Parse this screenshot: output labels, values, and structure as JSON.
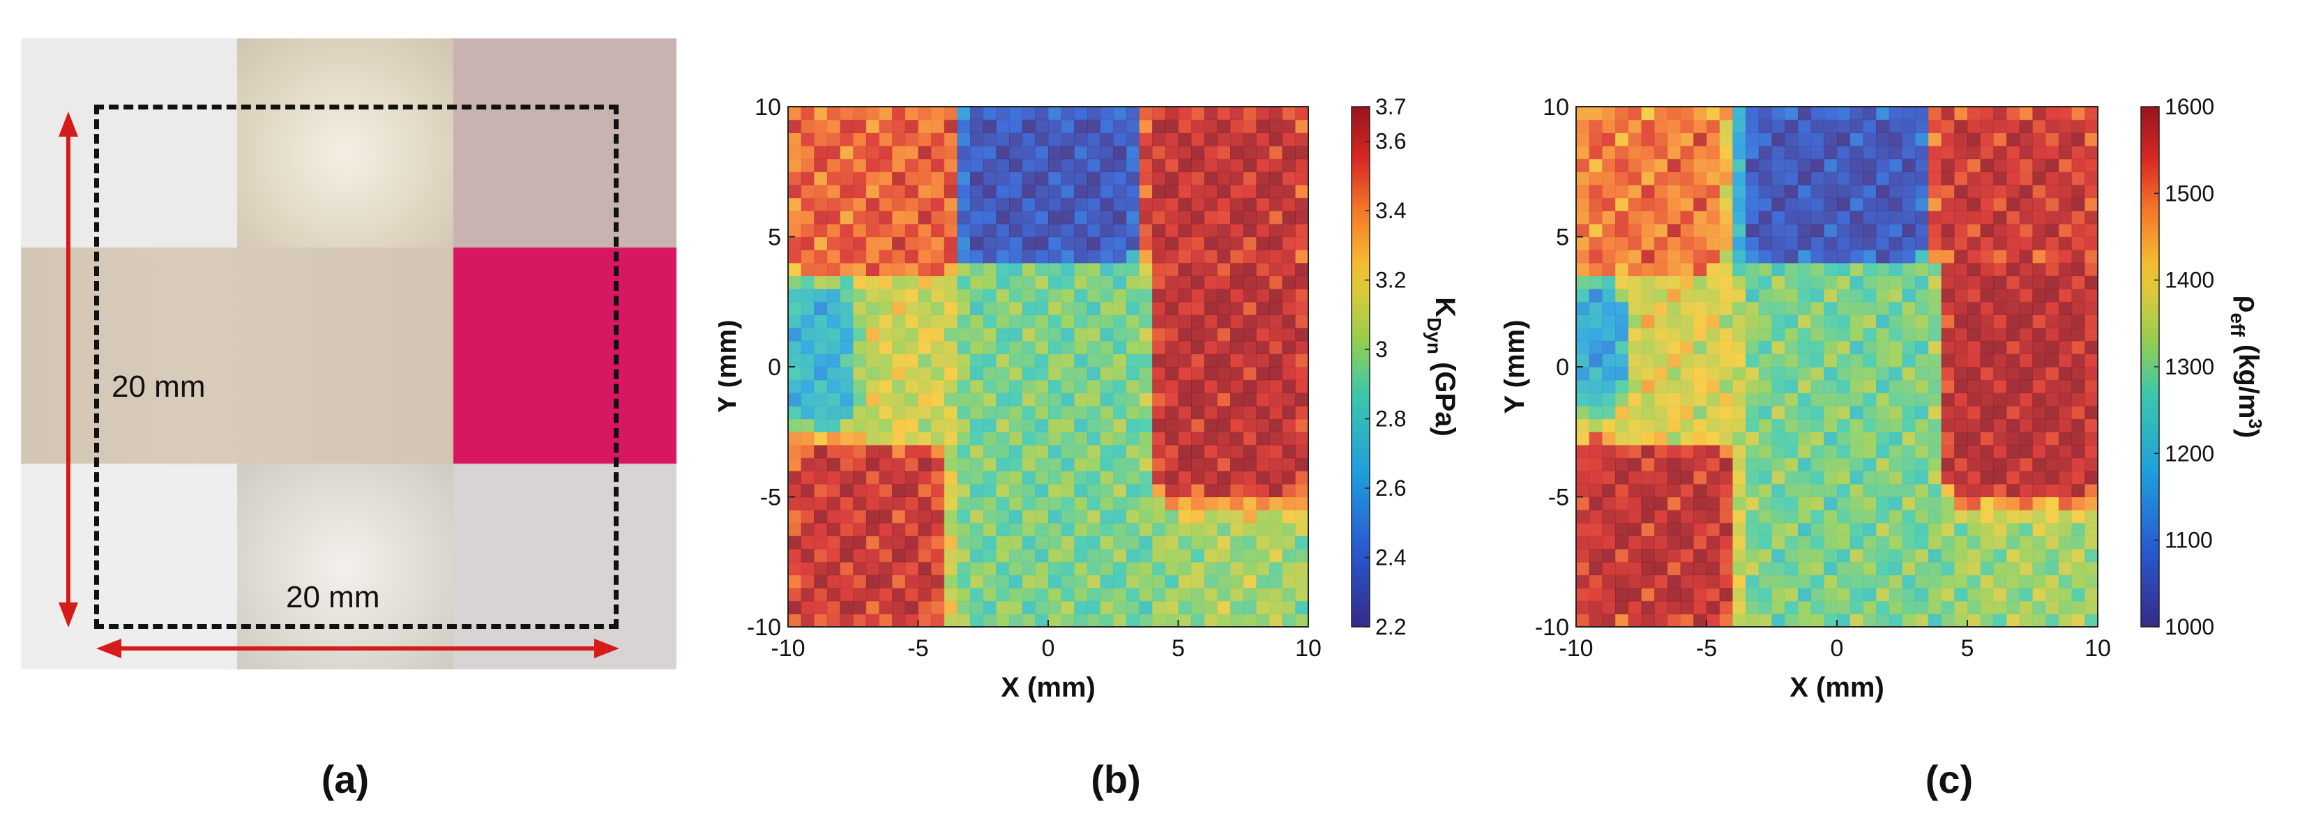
{
  "panel_a": {
    "label": "(a)",
    "dim_vertical": "20 mm",
    "dim_horizontal": "20 mm",
    "colors": {
      "magenta": "#d81762",
      "arrow": "#d61b1b"
    }
  },
  "chart_data": [
    {
      "type": "heatmap",
      "panel_label": "(b)",
      "xlabel": "X (mm)",
      "ylabel": "Y (mm)",
      "xlim": [
        -10,
        10
      ],
      "ylim": [
        -10,
        10
      ],
      "xticks": [
        "-10",
        "-5",
        "0",
        "5",
        "10"
      ],
      "yticks": [
        "10",
        "5",
        "0",
        "-5",
        "-10"
      ],
      "colorbar": {
        "label": "K_Dyn (GPa)",
        "label_main": "K",
        "label_sub": "Dyn",
        "label_unit": " (GPa)",
        "range": [
          2.2,
          3.7
        ],
        "ticks": [
          "3.7",
          "3.6",
          "3.4",
          "3.2",
          "3",
          "2.8",
          "2.6",
          "2.4",
          "2.2"
        ],
        "tick_values": [
          3.7,
          3.6,
          3.4,
          3.2,
          3.0,
          2.8,
          2.6,
          2.4,
          2.2
        ],
        "colormap": "jet"
      },
      "regions": [
        {
          "x": [
            -10,
            -3
          ],
          "y": [
            3.5,
            10
          ],
          "level": 0.85
        },
        {
          "x": [
            -3.5,
            3.5
          ],
          "y": [
            4,
            10
          ],
          "level": 0.08
        },
        {
          "x": [
            3.5,
            10
          ],
          "y": [
            4,
            10
          ],
          "level": 0.95
        },
        {
          "x": [
            4,
            10
          ],
          "y": [
            -5,
            4
          ],
          "level": 0.96
        },
        {
          "x": [
            -10,
            -4
          ],
          "y": [
            -10,
            -3
          ],
          "level": 0.93
        },
        {
          "x": [
            -3,
            -1.2
          ],
          "y": [
            -1.5,
            1.5
          ],
          "level": 0.88
        },
        {
          "x": [
            -10,
            -7.5
          ],
          "y": [
            -2,
            3
          ],
          "level": 0.35
        },
        {
          "x": [
            -3.5,
            4
          ],
          "y": [
            -10,
            4
          ],
          "level": 0.5
        },
        {
          "x": [
            -7,
            -3.5
          ],
          "y": [
            -3,
            3.5
          ],
          "level": 0.62
        }
      ]
    },
    {
      "type": "heatmap",
      "panel_label": "(c)",
      "xlabel": "X (mm)",
      "ylabel": "Y (mm)",
      "xlim": [
        -10,
        10
      ],
      "ylim": [
        -10,
        10
      ],
      "xticks": [
        "-10",
        "-5",
        "0",
        "5",
        "10"
      ],
      "yticks": [
        "10",
        "5",
        "0",
        "-5",
        "-10"
      ],
      "colorbar": {
        "label": "ρ_eff (kg/m^3)",
        "label_main": "ρ",
        "label_sub": "eff",
        "label_unit": " (kg/m",
        "label_sup": "3",
        "label_close": ")",
        "range": [
          1000,
          1600
        ],
        "ticks": [
          "1600",
          "1500",
          "1400",
          "1300",
          "1200",
          "1100",
          "1000"
        ],
        "tick_values": [
          1600,
          1500,
          1400,
          1300,
          1200,
          1100,
          1000
        ],
        "colormap": "jet"
      },
      "regions": [
        {
          "x": [
            -10,
            -4.5
          ],
          "y": [
            3.5,
            10
          ],
          "level": 0.82
        },
        {
          "x": [
            -3.5,
            3.5
          ],
          "y": [
            4,
            10
          ],
          "level": 0.08
        },
        {
          "x": [
            3.5,
            10
          ],
          "y": [
            4,
            10
          ],
          "level": 0.93
        },
        {
          "x": [
            4,
            10
          ],
          "y": [
            -5,
            4
          ],
          "level": 0.97
        },
        {
          "x": [
            -10,
            -4
          ],
          "y": [
            -10,
            -3
          ],
          "level": 0.95
        },
        {
          "x": [
            -3.5,
            -1.5
          ],
          "y": [
            -1.5,
            1.5
          ],
          "level": 0.9
        },
        {
          "x": [
            -10,
            -8
          ],
          "y": [
            -1,
            3
          ],
          "level": 0.3
        },
        {
          "x": [
            -3.5,
            4
          ],
          "y": [
            -10,
            4
          ],
          "level": 0.5
        },
        {
          "x": [
            -8,
            -4
          ],
          "y": [
            -3,
            3.5
          ],
          "level": 0.64
        }
      ]
    }
  ]
}
